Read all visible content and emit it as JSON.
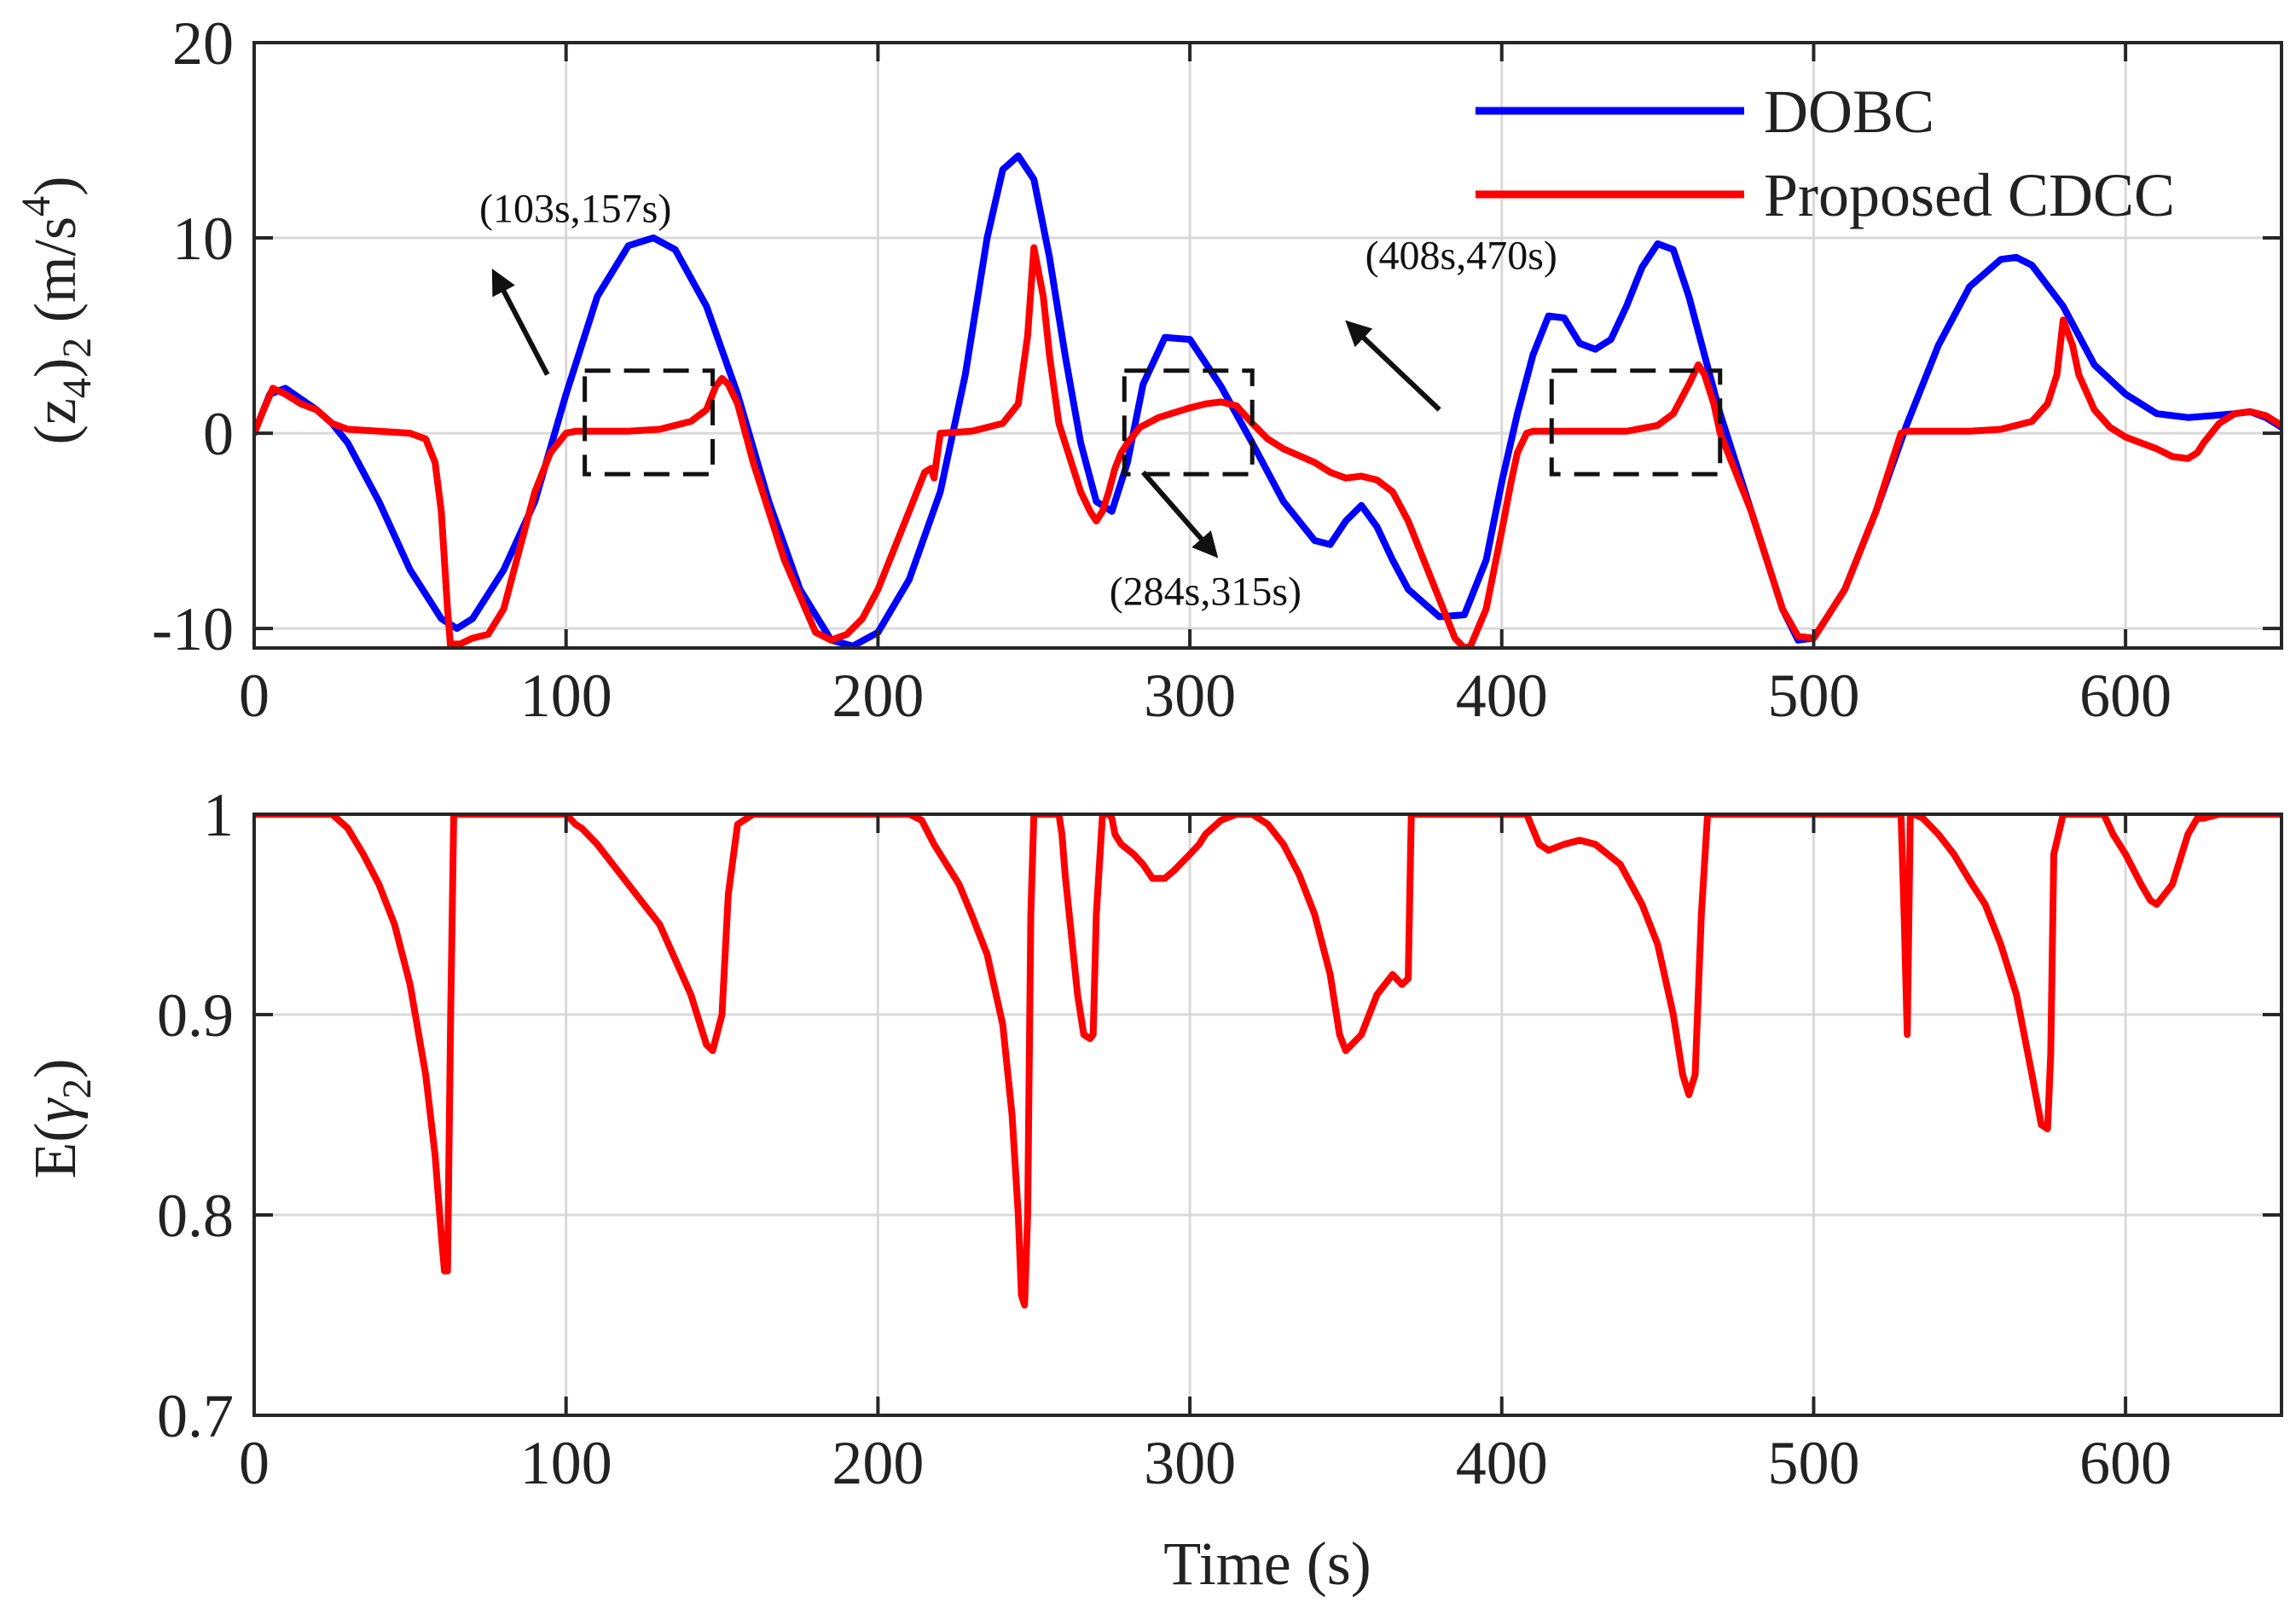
{
  "colors": {
    "DOBC": "#0000ff",
    "Proposed CDCC": "#ff0000",
    "axes": "#262626",
    "grid": "#d9d9d9",
    "box": "#111111"
  },
  "chart_data": [
    {
      "type": "line",
      "title": "",
      "xlabel": "",
      "ylabel": "(z4)2 (m/s4)",
      "ylabel_parts": {
        "open": "(z",
        "sub1": "4",
        "mid": ")",
        "sub2": "2",
        "unit": " (m/s",
        "sup": "4",
        "close": ")"
      },
      "xlim": [
        0,
        650
      ],
      "ylim": [
        -11,
        20
      ],
      "xticks": [
        0,
        100,
        200,
        300,
        400,
        500,
        600
      ],
      "xtick_labels": [
        "0",
        "100",
        "200",
        "300",
        "400",
        "500",
        "600"
      ],
      "yticks": [
        -10,
        0,
        10,
        20
      ],
      "ytick_labels": [
        "-10",
        "0",
        "10",
        "20"
      ],
      "grid": true,
      "legend": "top-right",
      "series": [
        {
          "name": "DOBC",
          "x": [
            0,
            5,
            10,
            20,
            25,
            30,
            40,
            50,
            60,
            65,
            70,
            80,
            90,
            100,
            110,
            120,
            128,
            135,
            145,
            155,
            165,
            175,
            185,
            192,
            200,
            210,
            220,
            228,
            235,
            240,
            245,
            250,
            255,
            260,
            265,
            270,
            275,
            280,
            285,
            292,
            300,
            310,
            320,
            330,
            340,
            345,
            350,
            355,
            360,
            365,
            370,
            380,
            388,
            395,
            400,
            405,
            410,
            415,
            420,
            425,
            430,
            435,
            440,
            445,
            450,
            455,
            460,
            465,
            470,
            480,
            490,
            495,
            500,
            510,
            520,
            530,
            540,
            550,
            560,
            565,
            570,
            580,
            590,
            600,
            610,
            620,
            628,
            635,
            640,
            645,
            650
          ],
          "y": [
            0,
            2,
            2.3,
            1.2,
            0.5,
            -0.5,
            -3.5,
            -7,
            -9.5,
            -10,
            -9.5,
            -7,
            -3.5,
            2,
            7,
            9.6,
            10,
            9.4,
            6.5,
            2,
            -3.5,
            -8,
            -10.6,
            -10.9,
            -10.2,
            -7.5,
            -3,
            3,
            10,
            13.5,
            14.2,
            13,
            9,
            4,
            -0.5,
            -3.5,
            -4,
            -1.5,
            2.5,
            4.9,
            4.8,
            2.4,
            -0.5,
            -3.5,
            -5.5,
            -5.7,
            -4.5,
            -3.7,
            -4.8,
            -6.5,
            -8,
            -9.4,
            -9.3,
            -6.5,
            -2.5,
            1,
            4,
            6,
            5.9,
            4.6,
            4.3,
            4.8,
            6.5,
            8.5,
            9.7,
            9.4,
            7,
            4,
            1,
            -4,
            -9,
            -10.6,
            -10.5,
            -8,
            -4,
            0.5,
            4.5,
            7.5,
            8.9,
            9,
            8.6,
            6.5,
            3.5,
            2,
            1,
            0.8,
            0.9,
            1,
            1.1,
            0.8,
            0.3
          ]
        },
        {
          "name": "Proposed CDCC",
          "x": [
            0,
            3,
            6,
            10,
            15,
            20,
            25,
            30,
            40,
            50,
            55,
            58,
            60,
            62,
            63,
            64,
            66,
            70,
            75,
            80,
            85,
            90,
            95,
            100,
            103,
            106,
            110,
            120,
            130,
            140,
            145,
            148,
            150,
            152,
            155,
            160,
            170,
            180,
            185,
            190,
            195,
            200,
            205,
            210,
            213,
            215,
            217,
            218,
            220,
            230,
            240,
            245,
            248,
            250,
            253,
            255,
            258,
            262,
            265,
            268,
            270,
            272,
            274,
            276,
            278,
            280,
            284,
            290,
            300,
            305,
            310,
            315,
            320,
            325,
            330,
            340,
            345,
            350,
            355,
            360,
            365,
            370,
            375,
            380,
            385,
            388,
            390,
            395,
            400,
            403,
            405,
            408,
            410,
            420,
            430,
            440,
            450,
            455,
            460,
            463,
            465,
            468,
            470,
            480,
            490,
            495,
            500,
            510,
            520,
            525,
            528,
            530,
            540,
            550,
            560,
            570,
            575,
            578,
            580,
            583,
            585,
            590,
            595,
            600,
            605,
            610,
            615,
            620,
            623,
            625,
            630,
            635,
            640,
            645,
            650
          ],
          "y": [
            0,
            1.2,
            2.3,
            2.0,
            1.5,
            1.2,
            0.5,
            0.2,
            0.1,
            0,
            -0.3,
            -1.5,
            -4,
            -9,
            -11,
            -10.8,
            -10.8,
            -10.5,
            -10.3,
            -9,
            -6,
            -3,
            -1,
            0,
            0.1,
            0.1,
            0.1,
            0.1,
            0.2,
            0.6,
            1.2,
            2.4,
            2.8,
            2.5,
            1.5,
            -1.5,
            -6.5,
            -10.2,
            -10.6,
            -10.3,
            -9.5,
            -8,
            -6,
            -4,
            -2.8,
            -2,
            -1.8,
            -2.3,
            0,
            0.1,
            0.5,
            1.5,
            5,
            9.5,
            7,
            4,
            0.5,
            -1.5,
            -3,
            -4,
            -4.5,
            -4,
            -3,
            -1.8,
            -1,
            -0.5,
            0.3,
            0.8,
            1.3,
            1.5,
            1.6,
            1.4,
            0.5,
            -0.3,
            -0.8,
            -1.5,
            -2,
            -2.3,
            -2.2,
            -2.4,
            -3,
            -4.5,
            -6.5,
            -8.5,
            -10.5,
            -11,
            -10.9,
            -9,
            -5,
            -2.5,
            -1,
            0,
            0.1,
            0.1,
            0.1,
            0.1,
            0.4,
            1,
            2.5,
            3.5,
            3,
            1.5,
            0,
            -4,
            -9,
            -10.4,
            -10.5,
            -8,
            -4,
            -1.5,
            0,
            0.1,
            0.1,
            0.1,
            0.2,
            0.6,
            1.5,
            3,
            5.8,
            4.5,
            3,
            1.2,
            0.3,
            -0.2,
            -0.5,
            -0.8,
            -1.2,
            -1.3,
            -1.0,
            -0.5,
            0.5,
            1.0,
            1.1,
            0.9,
            0.4
          ]
        }
      ],
      "annotations": [
        {
          "text": "(103s,157s)",
          "box": {
            "x0": 106,
            "x1": 147,
            "y0": -2.1,
            "y1": 3.2
          },
          "arrow": {
            "from": [
              94,
              3.0
            ],
            "to": [
              77,
              8.2
            ]
          },
          "label_at": [
            103,
            10.8
          ]
        },
        {
          "text": "(284s,315s)",
          "box": {
            "x0": 279,
            "x1": 320,
            "y0": -2.1,
            "y1": 3.2
          },
          "arrow": {
            "from": [
              285,
              -2.0
            ],
            "to": [
              308,
              -6.2
            ]
          },
          "label_at": [
            305,
            -8.8
          ]
        },
        {
          "text": "(408s,470s)",
          "box": {
            "x0": 416,
            "x1": 470,
            "y0": -2.1,
            "y1": 3.2
          },
          "arrow": {
            "from": [
              380,
              1.2
            ],
            "to": [
              351,
              5.6
            ]
          },
          "label_at": [
            387,
            8.4
          ]
        }
      ]
    },
    {
      "type": "line",
      "title": "",
      "xlabel": "Time (s)",
      "ylabel": "E(γ2)",
      "ylabel_parts": {
        "open": "E(",
        "greek": "γ",
        "sub": "2",
        "close": ")"
      },
      "xlim": [
        0,
        650
      ],
      "ylim": [
        0.7,
        1.0
      ],
      "xticks": [
        0,
        100,
        200,
        300,
        400,
        500,
        600
      ],
      "xtick_labels": [
        "0",
        "100",
        "200",
        "300",
        "400",
        "500",
        "600"
      ],
      "yticks": [
        0.7,
        0.8,
        0.9,
        1.0
      ],
      "ytick_labels": [
        "0.7",
        "0.8",
        "0.9",
        "1"
      ],
      "grid": true,
      "legend": "none",
      "series": [
        {
          "name": "",
          "x": [
            0,
            25,
            30,
            35,
            40,
            45,
            50,
            55,
            58,
            60,
            61,
            62,
            63,
            64,
            100,
            103,
            105,
            110,
            115,
            120,
            130,
            140,
            145,
            147,
            150,
            152,
            155,
            160,
            210,
            214,
            218,
            222,
            226,
            230,
            235,
            240,
            243,
            245,
            246,
            247,
            248,
            249,
            250,
            258,
            259,
            260,
            262,
            264,
            266,
            268,
            269,
            270,
            272,
            274,
            275,
            276,
            278,
            282,
            285,
            288,
            292,
            295,
            300,
            303,
            305,
            310,
            315,
            320,
            325,
            330,
            335,
            340,
            345,
            348,
            350,
            355,
            360,
            365,
            368,
            370,
            371,
            380,
            408,
            412,
            415,
            420,
            425,
            430,
            438,
            445,
            450,
            455,
            458,
            460,
            462,
            464,
            466,
            470,
            528,
            529,
            530,
            531,
            532,
            535,
            540,
            545,
            550,
            555,
            560,
            565,
            570,
            573,
            575,
            576,
            577,
            580,
            581,
            582,
            585,
            593,
            596,
            600,
            605,
            608,
            610,
            615,
            620,
            623,
            625,
            630,
            650
          ],
          "y": [
            1.0,
            1.0,
            0.993,
            0.98,
            0.965,
            0.945,
            0.915,
            0.87,
            0.83,
            0.79,
            0.772,
            0.772,
            0.9,
            1.0,
            1.0,
            0.995,
            0.993,
            0.985,
            0.975,
            0.965,
            0.945,
            0.91,
            0.885,
            0.882,
            0.9,
            0.96,
            0.995,
            1.0,
            1.0,
            0.997,
            0.985,
            0.975,
            0.965,
            0.95,
            0.93,
            0.895,
            0.85,
            0.8,
            0.76,
            0.755,
            0.8,
            0.95,
            1.0,
            1.0,
            0.99,
            0.97,
            0.94,
            0.91,
            0.89,
            0.888,
            0.89,
            0.95,
            1.0,
            1.0,
            0.998,
            0.99,
            0.985,
            0.98,
            0.975,
            0.968,
            0.968,
            0.972,
            0.98,
            0.985,
            0.99,
            0.997,
            1.0,
            1.0,
            0.995,
            0.985,
            0.97,
            0.95,
            0.92,
            0.89,
            0.882,
            0.89,
            0.91,
            0.92,
            0.915,
            0.918,
            1.0,
            1.0,
            1.0,
            0.985,
            0.982,
            0.985,
            0.987,
            0.985,
            0.975,
            0.955,
            0.935,
            0.9,
            0.87,
            0.86,
            0.87,
            0.95,
            1.0,
            1.0,
            1.0,
            0.95,
            0.89,
            1.0,
            1.0,
            0.998,
            0.99,
            0.98,
            0.967,
            0.955,
            0.935,
            0.91,
            0.87,
            0.845,
            0.843,
            0.88,
            0.98,
            1.0,
            1.0,
            1.0,
            1.0,
            1.0,
            0.99,
            0.98,
            0.965,
            0.957,
            0.955,
            0.965,
            0.99,
            0.998,
            0.998,
            1.0,
            1.0
          ]
        }
      ]
    }
  ]
}
